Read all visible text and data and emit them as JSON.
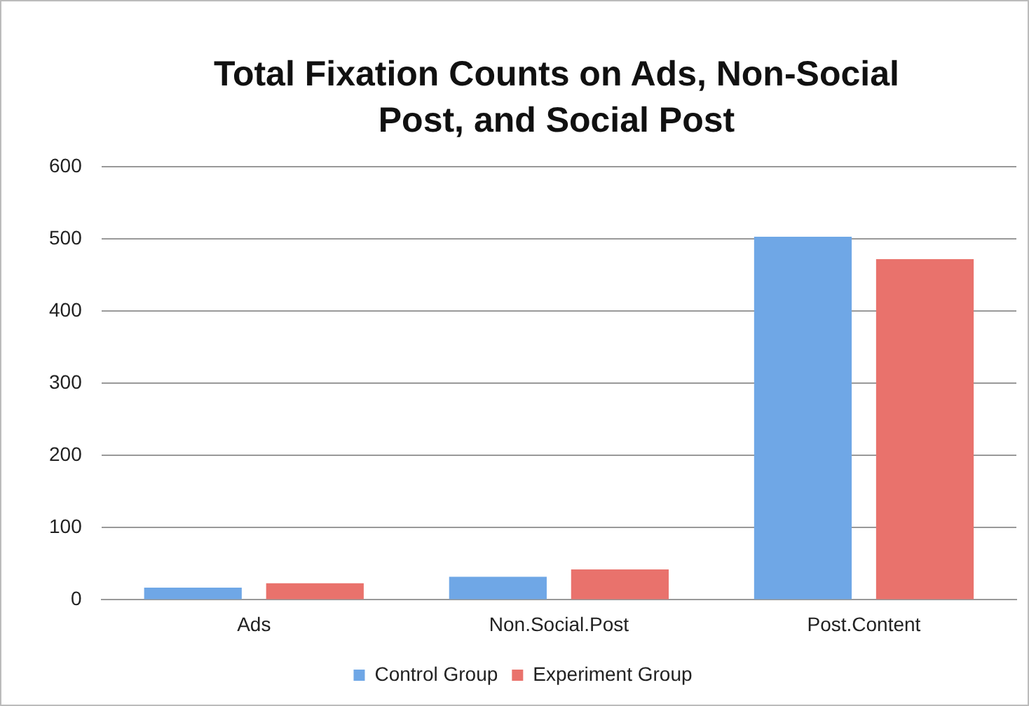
{
  "chart_data": {
    "type": "bar",
    "title": "Total Fixation Counts on Ads, Non-Social Post, and Social Post",
    "categories": [
      "Ads",
      "Non.Social.Post",
      "Post.Content"
    ],
    "series": [
      {
        "name": "Control Group",
        "color": "#6fa7e6",
        "values": [
          17,
          32,
          503
        ]
      },
      {
        "name": "Experiment Group",
        "color": "#e9726c",
        "values": [
          23,
          42,
          472
        ]
      }
    ],
    "ylim": [
      0,
      600
    ],
    "yticks": [
      0,
      100,
      200,
      300,
      400,
      500,
      600
    ],
    "grid": "y",
    "legend": "bottom"
  }
}
